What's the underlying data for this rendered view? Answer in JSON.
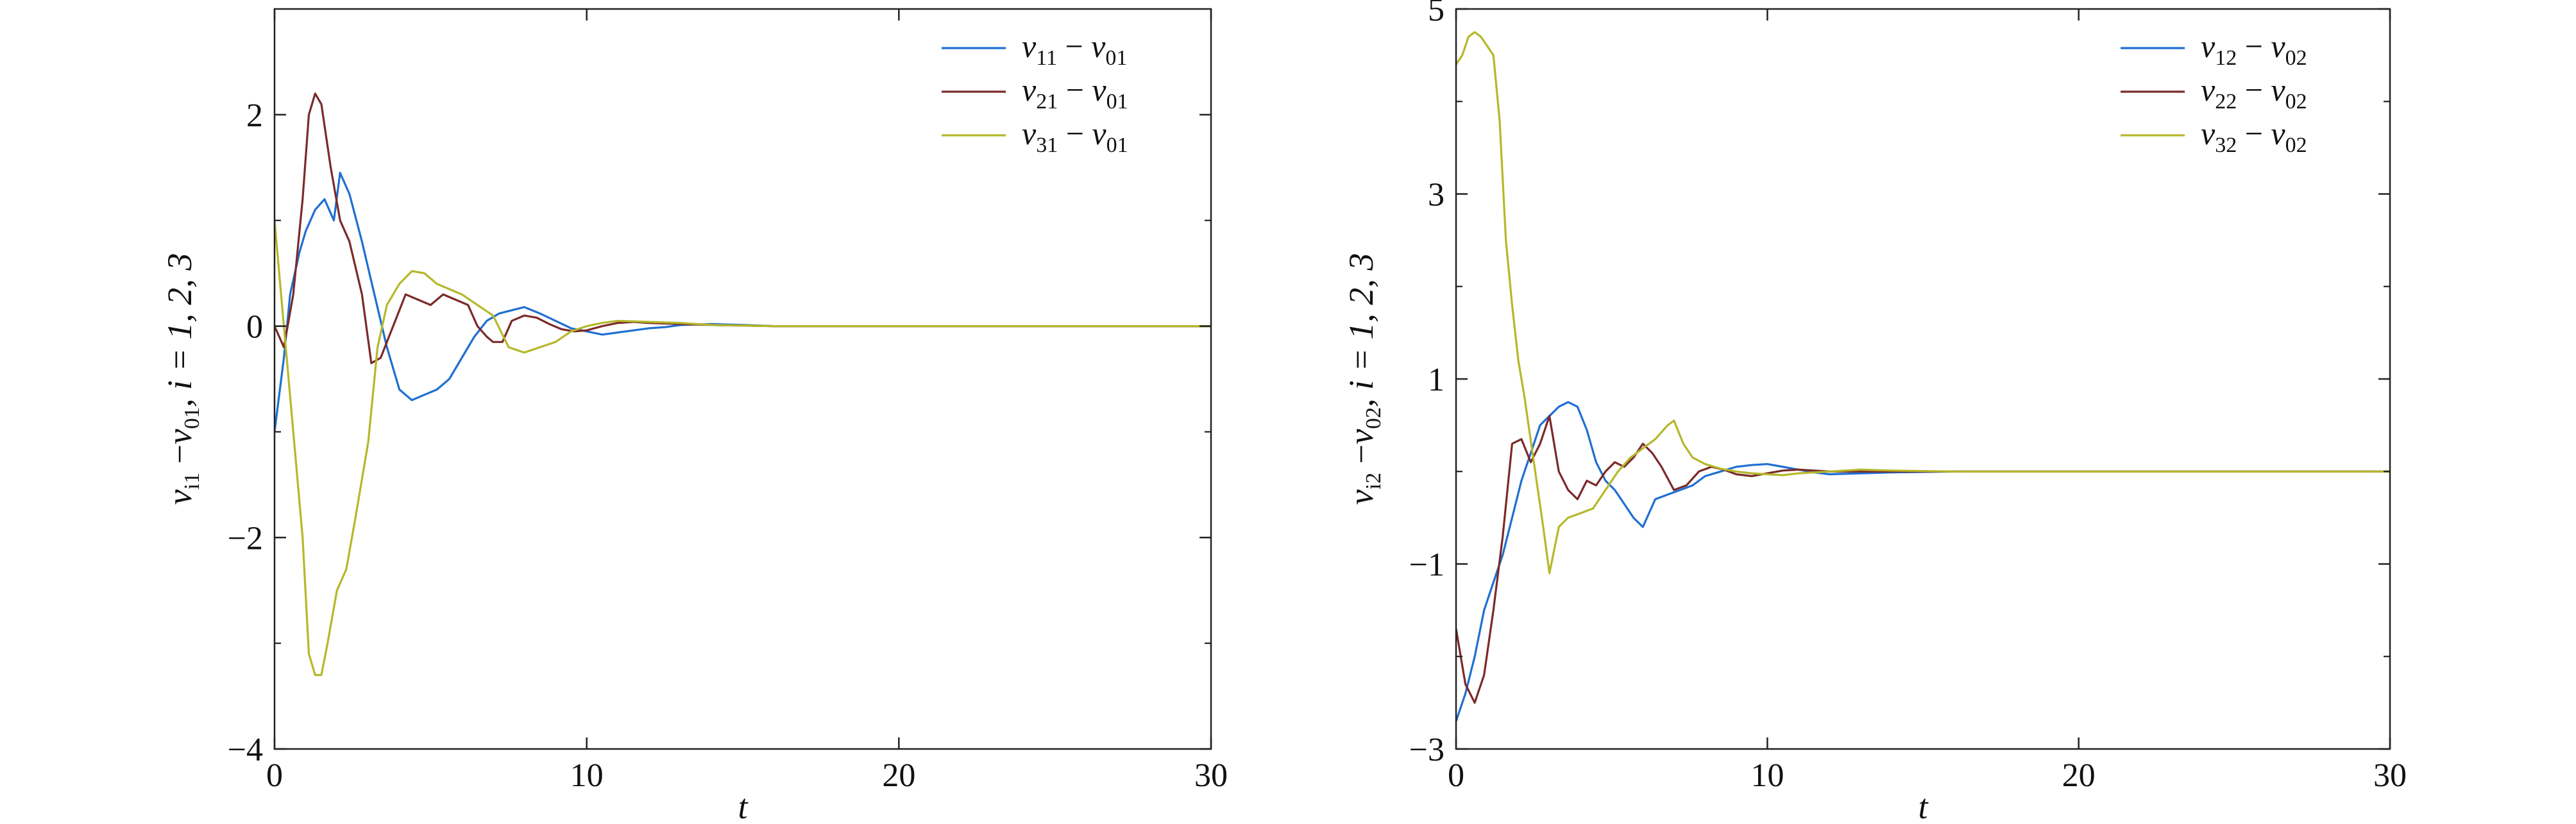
{
  "figure": {
    "panels": [
      {
        "name": "panel-v1",
        "xlabel": "t",
        "ylabel": {
          "base": "v",
          "sub1": "i1",
          "minus": "−",
          "base2": "v",
          "sub2": "01",
          "tail": ", i = 1, 2, 3"
        },
        "ylim": [
          -4,
          3
        ],
        "xlim": [
          0,
          30
        ],
        "yticks": [
          -4,
          -2,
          0,
          2
        ],
        "xticks": [
          0,
          10,
          20,
          30
        ],
        "minor_yticks": [
          -3,
          -1,
          1
        ],
        "legend": [
          {
            "v": "v",
            "s1": "11",
            "m": " − ",
            "v2": "v",
            "s2": "01"
          },
          {
            "v": "v",
            "s1": "21",
            "m": " − ",
            "v2": "v",
            "s2": "01"
          },
          {
            "v": "v",
            "s1": "31",
            "m": " − ",
            "v2": "v",
            "s2": "01"
          }
        ]
      },
      {
        "name": "panel-v2",
        "xlabel": "t",
        "ylabel": {
          "base": "v",
          "sub1": "i2",
          "minus": "−",
          "base2": "v",
          "sub2": "02",
          "tail": ", i = 1, 2, 3"
        },
        "ylim": [
          -3,
          5
        ],
        "xlim": [
          0,
          30
        ],
        "yticks": [
          -3,
          -1,
          1,
          3,
          5
        ],
        "xticks": [
          0,
          10,
          20,
          30
        ],
        "minor_yticks": [
          -2,
          0,
          2,
          4
        ],
        "legend": [
          {
            "v": "v",
            "s1": "12",
            "m": " − ",
            "v2": "v",
            "s2": "02"
          },
          {
            "v": "v",
            "s1": "22",
            "m": " − ",
            "v2": "v",
            "s2": "02"
          },
          {
            "v": "v",
            "s1": "32",
            "m": " − ",
            "v2": "v",
            "s2": "02"
          }
        ]
      }
    ]
  },
  "colors": {
    "series1": "#1f6fd1",
    "series2": "#7b2a2a",
    "series3": "#b5b82a",
    "axis": "#222222"
  },
  "chart_data": [
    {
      "type": "line",
      "xlabel": "t",
      "ylabel": "v_i1 − v_01, i = 1, 2, 3",
      "xlim": [
        0,
        30
      ],
      "ylim": [
        -4,
        3
      ],
      "legend_position": "top-right",
      "grid": false,
      "series": [
        {
          "name": "v11 − v01",
          "x": [
            0,
            0.3,
            0.5,
            0.8,
            1.0,
            1.3,
            1.6,
            1.9,
            2.1,
            2.4,
            2.8,
            3.2,
            3.6,
            4.0,
            4.4,
            4.8,
            5.2,
            5.6,
            6.0,
            6.4,
            6.8,
            7.2,
            7.6,
            8.0,
            8.5,
            9.0,
            9.5,
            10.0,
            10.5,
            11.0,
            11.5,
            12.0,
            12.5,
            13.0,
            14.0,
            15.0,
            16.0,
            18.0,
            20.0,
            25.0,
            30.0
          ],
          "y": [
            -1.0,
            -0.3,
            0.3,
            0.7,
            0.9,
            1.1,
            1.2,
            1.0,
            1.45,
            1.25,
            0.8,
            0.3,
            -0.2,
            -0.6,
            -0.7,
            -0.65,
            -0.6,
            -0.5,
            -0.3,
            -0.1,
            0.05,
            0.12,
            0.15,
            0.18,
            0.12,
            0.05,
            -0.02,
            -0.05,
            -0.08,
            -0.06,
            -0.04,
            -0.02,
            -0.01,
            0.01,
            0.02,
            0.01,
            0.0,
            0.0,
            0.0,
            0.0,
            0.0
          ]
        },
        {
          "name": "v21 − v01",
          "x": [
            0,
            0.3,
            0.6,
            0.9,
            1.1,
            1.3,
            1.5,
            1.8,
            2.1,
            2.4,
            2.8,
            3.1,
            3.4,
            3.8,
            4.2,
            4.6,
            5.0,
            5.4,
            5.8,
            6.2,
            6.5,
            6.8,
            7.0,
            7.3,
            7.6,
            8.0,
            8.4,
            8.8,
            9.2,
            9.6,
            10.0,
            10.5,
            11.0,
            11.5,
            12.0,
            13.0,
            14.0,
            16.0,
            20.0,
            25.0,
            30.0
          ],
          "y": [
            0.0,
            -0.2,
            0.3,
            1.2,
            2.0,
            2.2,
            2.1,
            1.5,
            1.0,
            0.8,
            0.3,
            -0.35,
            -0.3,
            0.0,
            0.3,
            0.25,
            0.2,
            0.3,
            0.25,
            0.2,
            0.0,
            -0.1,
            -0.15,
            -0.15,
            0.05,
            0.1,
            0.08,
            0.02,
            -0.03,
            -0.05,
            -0.04,
            0.0,
            0.03,
            0.04,
            0.03,
            0.02,
            0.01,
            0.0,
            0.0,
            0.0,
            0.0
          ]
        },
        {
          "name": "v31 − v01",
          "x": [
            0,
            0.3,
            0.6,
            0.9,
            1.1,
            1.3,
            1.5,
            1.7,
            2.0,
            2.3,
            2.6,
            3.0,
            3.3,
            3.6,
            4.0,
            4.4,
            4.8,
            5.2,
            5.6,
            6.0,
            6.5,
            7.0,
            7.5,
            8.0,
            8.5,
            9.0,
            9.5,
            10.0,
            10.5,
            11.0,
            12.0,
            13.0,
            14.0,
            16.0,
            20.0,
            25.0,
            30.0
          ],
          "y": [
            1.0,
            0.0,
            -1.0,
            -2.0,
            -3.1,
            -3.3,
            -3.3,
            -3.0,
            -2.5,
            -2.3,
            -1.8,
            -1.1,
            -0.2,
            0.2,
            0.4,
            0.52,
            0.5,
            0.4,
            0.35,
            0.3,
            0.2,
            0.1,
            -0.2,
            -0.25,
            -0.2,
            -0.15,
            -0.05,
            0.0,
            0.03,
            0.05,
            0.04,
            0.03,
            0.01,
            0.0,
            0.0,
            0.0,
            0.0
          ]
        }
      ]
    },
    {
      "type": "line",
      "xlabel": "t",
      "ylabel": "v_i2 − v_02, i = 1, 2, 3",
      "xlim": [
        0,
        30
      ],
      "ylim": [
        -3,
        5
      ],
      "legend_position": "top-right",
      "grid": false,
      "series": [
        {
          "name": "v12 − v02",
          "x": [
            0,
            0.3,
            0.6,
            0.9,
            1.2,
            1.5,
            1.8,
            2.1,
            2.4,
            2.7,
            3.0,
            3.3,
            3.6,
            3.9,
            4.2,
            4.5,
            4.8,
            5.1,
            5.4,
            5.7,
            6.0,
            6.4,
            6.8,
            7.2,
            7.6,
            8.0,
            8.5,
            9.0,
            9.5,
            10.0,
            10.5,
            11.0,
            11.5,
            12.0,
            13.0,
            14.0,
            16.0,
            20.0,
            25.0,
            30.0
          ],
          "y": [
            -2.7,
            -2.4,
            -2.0,
            -1.5,
            -1.2,
            -0.9,
            -0.5,
            -0.1,
            0.2,
            0.5,
            0.6,
            0.7,
            0.75,
            0.7,
            0.45,
            0.1,
            -0.1,
            -0.2,
            -0.35,
            -0.5,
            -0.6,
            -0.3,
            -0.25,
            -0.2,
            -0.15,
            -0.05,
            0.0,
            0.05,
            0.07,
            0.08,
            0.05,
            0.02,
            -0.01,
            -0.03,
            -0.02,
            -0.01,
            0.0,
            0.0,
            0.0,
            0.0
          ]
        },
        {
          "name": "v22 − v02",
          "x": [
            0,
            0.3,
            0.6,
            0.9,
            1.2,
            1.5,
            1.8,
            2.1,
            2.4,
            2.7,
            3.0,
            3.3,
            3.6,
            3.9,
            4.2,
            4.5,
            4.8,
            5.1,
            5.4,
            5.7,
            6.0,
            6.3,
            6.6,
            7.0,
            7.4,
            7.8,
            8.2,
            8.6,
            9.0,
            9.5,
            10.0,
            10.5,
            11.0,
            11.5,
            12.0,
            13.0,
            14.0,
            16.0,
            20.0,
            25.0,
            30.0
          ],
          "y": [
            -1.7,
            -2.3,
            -2.5,
            -2.2,
            -1.5,
            -0.7,
            0.3,
            0.35,
            0.1,
            0.3,
            0.6,
            0.0,
            -0.2,
            -0.3,
            -0.1,
            -0.15,
            0.0,
            0.1,
            0.05,
            0.15,
            0.3,
            0.2,
            0.05,
            -0.2,
            -0.15,
            0.0,
            0.05,
            0.02,
            -0.03,
            -0.05,
            -0.02,
            0.01,
            0.02,
            0.01,
            0.0,
            0.0,
            0.0,
            0.0,
            0.0,
            0.0,
            0.0
          ]
        },
        {
          "name": "v32 − v02",
          "x": [
            0,
            0.2,
            0.4,
            0.6,
            0.8,
            1.0,
            1.2,
            1.4,
            1.6,
            1.8,
            2.0,
            2.2,
            2.5,
            2.8,
            3.0,
            3.3,
            3.6,
            4.0,
            4.4,
            4.8,
            5.2,
            5.6,
            6.0,
            6.4,
            6.8,
            7.0,
            7.3,
            7.6,
            8.0,
            8.5,
            9.0,
            9.5,
            10.0,
            10.5,
            11.0,
            11.5,
            12.0,
            13.0,
            14.0,
            16.0,
            20.0,
            25.0,
            30.0
          ],
          "y": [
            4.4,
            4.5,
            4.7,
            4.75,
            4.7,
            4.6,
            4.5,
            3.8,
            2.5,
            1.8,
            1.2,
            0.8,
            0.1,
            -0.6,
            -1.1,
            -0.6,
            -0.5,
            -0.45,
            -0.4,
            -0.2,
            0.0,
            0.15,
            0.25,
            0.35,
            0.5,
            0.55,
            0.3,
            0.15,
            0.08,
            0.03,
            0.0,
            -0.02,
            -0.03,
            -0.04,
            -0.02,
            -0.01,
            0.0,
            0.02,
            0.01,
            0.0,
            0.0,
            0.0,
            0.0
          ]
        }
      ]
    }
  ]
}
